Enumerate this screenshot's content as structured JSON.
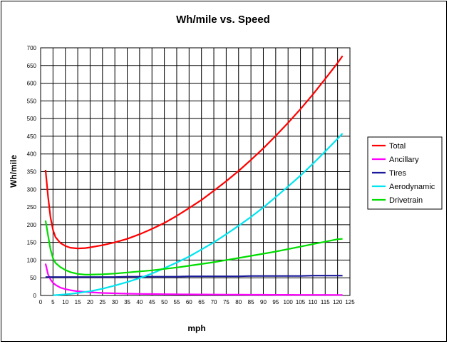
{
  "chart_data": {
    "type": "line",
    "title": "Wh/mile vs. Speed",
    "xlabel": "mph",
    "ylabel": "Wh/mile",
    "xlim": [
      0,
      125
    ],
    "ylim": [
      0,
      700
    ],
    "x_ticks": [
      0,
      5,
      10,
      15,
      20,
      25,
      30,
      35,
      40,
      45,
      50,
      55,
      60,
      65,
      70,
      75,
      80,
      85,
      90,
      95,
      100,
      105,
      110,
      115,
      120,
      125
    ],
    "y_ticks": [
      0,
      50,
      100,
      150,
      200,
      250,
      300,
      350,
      400,
      450,
      500,
      550,
      600,
      650,
      700
    ],
    "grid": true,
    "legend_position": "right",
    "x": [
      2,
      3,
      4,
      5,
      6,
      8,
      10,
      12,
      15,
      18,
      20,
      25,
      30,
      35,
      40,
      45,
      50,
      55,
      60,
      65,
      70,
      75,
      80,
      85,
      90,
      95,
      100,
      105,
      110,
      115,
      120,
      122
    ],
    "series": [
      {
        "name": "Total",
        "color": "#ff0000",
        "values": [
          355,
          280,
          220,
          185,
          165,
          148,
          140,
          135,
          133,
          134,
          136,
          142,
          150,
          160,
          173,
          188,
          205,
          225,
          247,
          270,
          296,
          323,
          352,
          383,
          416,
          451,
          488,
          527,
          568,
          612,
          657,
          677
        ]
      },
      {
        "name": "Ancillary",
        "color": "#ff00ff",
        "values": [
          90,
          60,
          45,
          36,
          30,
          22,
          18,
          15,
          12,
          10,
          9,
          7,
          6,
          5,
          4.5,
          4,
          3.6,
          3.3,
          3,
          2.8,
          2.6,
          2.4,
          2.3,
          2.1,
          2,
          1.9,
          1.8,
          1.7,
          1.6,
          1.6,
          1.5,
          1.5
        ]
      },
      {
        "name": "Tires",
        "color": "#1a1a9a",
        "values": [
          52,
          52,
          52,
          52,
          52,
          52,
          52,
          52,
          52,
          52,
          52,
          52,
          52,
          53,
          53,
          53,
          53,
          53,
          54,
          54,
          54,
          54,
          54,
          55,
          55,
          55,
          55,
          55,
          56,
          56,
          56,
          56
        ]
      },
      {
        "name": "Aerodynamic",
        "color": "#00e5f0",
        "values": [
          0,
          0.3,
          0.5,
          0.8,
          1.1,
          2,
          3,
          4.4,
          7,
          10,
          12,
          19,
          28,
          38,
          49,
          62,
          77,
          93,
          110,
          130,
          150,
          173,
          197,
          222,
          249,
          278,
          308,
          339,
          372,
          407,
          443,
          458
        ]
      },
      {
        "name": "Drivetrain",
        "color": "#00dd00",
        "values": [
          212,
          170,
          130,
          105,
          92,
          80,
          72,
          66,
          61,
          59,
          59,
          60,
          62,
          65,
          68,
          71,
          75,
          79,
          84,
          89,
          94,
          100,
          106,
          112,
          118,
          124,
          131,
          138,
          145,
          152,
          159,
          160
        ]
      }
    ]
  }
}
